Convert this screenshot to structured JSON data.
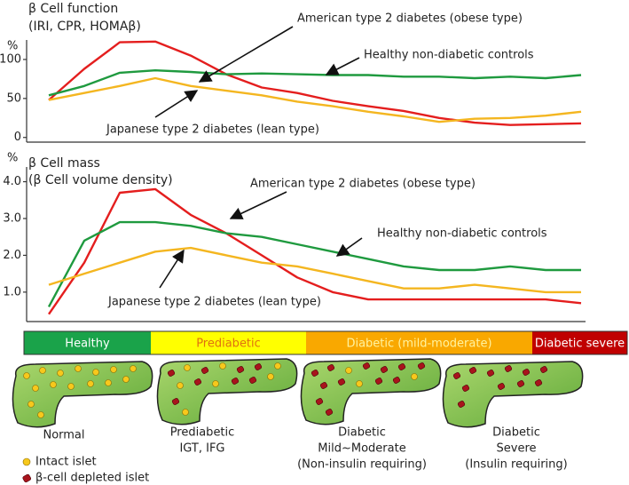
{
  "chart_data": [
    {
      "type": "line",
      "title": [
        "β Cell function",
        "(IRI, CPR, HOMAβ)"
      ],
      "ylabel": "%",
      "categories": [
        null,
        null,
        null,
        null,
        null,
        null,
        null,
        null,
        null,
        null,
        null,
        null,
        null,
        null,
        null,
        null
      ],
      "series": [
        {
          "name": "American type 2 diabetes (obese type)",
          "color": "#e41e1e",
          "values": [
            48,
            88,
            122,
            123,
            105,
            81,
            64,
            57,
            47,
            40,
            34,
            25,
            19,
            16,
            17,
            18
          ]
        },
        {
          "name": "Healthy non-diabetic controls",
          "color": "#1f9a3f",
          "values": [
            54,
            66,
            83,
            86,
            84,
            81,
            82,
            81,
            80,
            80,
            78,
            78,
            76,
            78,
            76,
            80
          ]
        },
        {
          "name": "Japanese type 2 diabetes (lean type)",
          "color": "#f4b620",
          "values": [
            48,
            57,
            66,
            76,
            66,
            60,
            54,
            46,
            40,
            33,
            27,
            20,
            24,
            25,
            28,
            33
          ]
        }
      ],
      "ylim": [
        -6,
        125
      ],
      "yticks": [
        0,
        50,
        100
      ]
    },
    {
      "type": "line",
      "title": [
        "β Cell mass",
        "(β Cell volume density)"
      ],
      "ylabel": "%",
      "categories": [
        null,
        null,
        null,
        null,
        null,
        null,
        null,
        null,
        null,
        null,
        null,
        null,
        null,
        null,
        null,
        null
      ],
      "series": [
        {
          "name": "American type 2 diabetes (obese type)",
          "color": "#e41e1e",
          "values": [
            0.4,
            1.8,
            3.7,
            3.8,
            3.1,
            2.6,
            2.0,
            1.4,
            1.0,
            0.8,
            0.8,
            0.8,
            0.8,
            0.8,
            0.8,
            0.7
          ]
        },
        {
          "name": "Healthy non-diabetic controls",
          "color": "#1f9a3f",
          "values": [
            0.6,
            2.4,
            2.9,
            2.9,
            2.8,
            2.6,
            2.5,
            2.3,
            2.1,
            1.9,
            1.7,
            1.6,
            1.6,
            1.7,
            1.6,
            1.6
          ]
        },
        {
          "name": "Japanese type 2 diabetes (lean type)",
          "color": "#f4b620",
          "values": [
            1.2,
            1.5,
            1.8,
            2.1,
            2.2,
            2.0,
            1.8,
            1.7,
            1.5,
            1.3,
            1.1,
            1.1,
            1.2,
            1.1,
            1.0,
            1.0
          ]
        }
      ],
      "ylim": [
        0.2,
        4.4
      ],
      "yticks": [
        {
          "value": 1,
          "label": "1.0"
        },
        {
          "value": 2,
          "label": "2.0"
        },
        {
          "value": 3,
          "label": "3.0"
        },
        {
          "value": 4,
          "label": "4.0"
        }
      ]
    }
  ],
  "stages": [
    {
      "label": "Healthy",
      "color": "#1aa34a",
      "text_color": "#ffffff"
    },
    {
      "label": "Prediabetic",
      "color": "#ffff00",
      "text_color": "#e07010"
    },
    {
      "label": "Diabetic (mild-moderate)",
      "color": "#f9a800",
      "text_color": "#fff3a0"
    },
    {
      "label": "Diabetic severe",
      "color": "#c00000",
      "text_color": "#ffffff"
    }
  ],
  "illustrations": [
    {
      "caption": [
        "Normal"
      ]
    },
    {
      "caption": [
        "Prediabetic",
        "IGT, IFG"
      ]
    },
    {
      "caption": [
        "Diabetic",
        "Mild~Moderate",
        "(Non-insulin requiring)"
      ]
    },
    {
      "caption": [
        "Diabetic",
        "Severe",
        "(Insulin requiring)"
      ]
    }
  ],
  "legend": [
    "Intact islet",
    "β-cell depleted islet"
  ]
}
